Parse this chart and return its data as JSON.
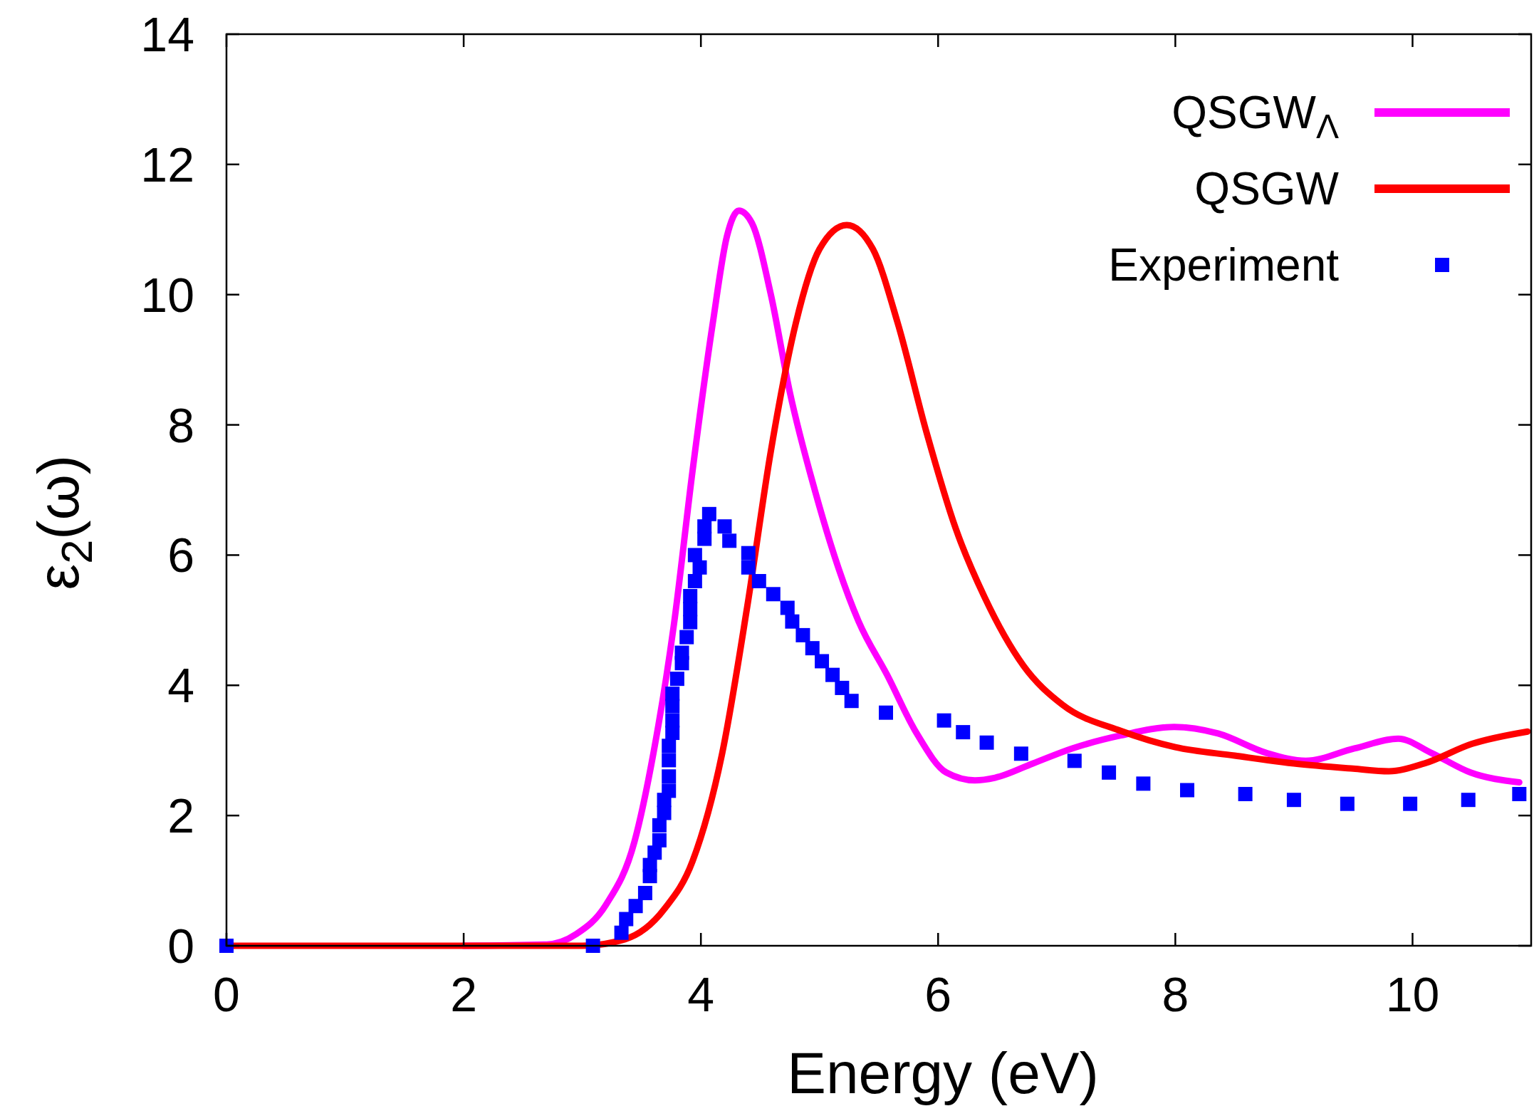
{
  "chart_data": {
    "type": "line",
    "xlabel": "Energy (eV)",
    "ylabel": "ε$_{2}$(ω)",
    "xlim": [
      0,
      11
    ],
    "ylim": [
      0,
      14
    ],
    "xticks": [
      0,
      2,
      4,
      6,
      8,
      10
    ],
    "yticks": [
      0,
      2,
      4,
      6,
      8,
      10,
      12,
      14
    ],
    "legend": "top right",
    "grid": false,
    "series": [
      {
        "name": "QSGW$_{Λ}$",
        "color": "#ff00ff",
        "line_style": "solid",
        "x": [
          2,
          2.7,
          2.95,
          3.2,
          3.44,
          3.6,
          3.77,
          3.93,
          4.1,
          4.22,
          4.32,
          4.43,
          4.59,
          4.75,
          4.96,
          5.16,
          5.33,
          5.57,
          5.82,
          6.07,
          6.31,
          6.48,
          6.8,
          7.13,
          7.54,
          7.99,
          8.36,
          8.77,
          9.1,
          9.51,
          9.88,
          10.16,
          10.49,
          10.9
        ],
        "values": [
          0,
          0.02,
          0.18,
          0.63,
          1.6,
          2.96,
          4.9,
          7.3,
          9.56,
          10.9,
          11.29,
          11.1,
          10,
          8.5,
          7,
          5.8,
          4.98,
          4.16,
          3.26,
          2.66,
          2.54,
          2.58,
          2.8,
          3.03,
          3.23,
          3.36,
          3.26,
          2.96,
          2.84,
          3.03,
          3.18,
          2.96,
          2.66,
          2.51
        ]
      },
      {
        "name": "QSGW",
        "color": "#ff0000",
        "line_style": "solid",
        "x": [
          0,
          1,
          2,
          3,
          3.36,
          3.69,
          3.93,
          4.18,
          4.39,
          4.59,
          4.8,
          5,
          5.23,
          5.45,
          5.66,
          5.9,
          6.15,
          6.39,
          6.72,
          7.05,
          7.54,
          8,
          8.5,
          9,
          9.5,
          9.8,
          10.1,
          10.5,
          10.97
        ],
        "values": [
          0,
          0,
          0,
          0,
          0.1,
          0.56,
          1.3,
          2.96,
          5.2,
          7.6,
          9.56,
          10.7,
          11.07,
          10.7,
          9.56,
          7.9,
          6.4,
          5.36,
          4.3,
          3.7,
          3.3,
          3.05,
          2.92,
          2.8,
          2.72,
          2.68,
          2.8,
          3.1,
          3.29
        ]
      },
      {
        "name": "Experiment",
        "type": "scatter",
        "color": "#0000ff",
        "marker": "square",
        "x": [
          0,
          3.09,
          3.33,
          3.37,
          3.45,
          3.53,
          3.57,
          3.57,
          3.61,
          3.65,
          3.65,
          3.69,
          3.69,
          3.73,
          3.73,
          3.73,
          3.73,
          3.76,
          3.76,
          3.76,
          3.76,
          3.8,
          3.84,
          3.84,
          3.88,
          3.91,
          3.91,
          3.91,
          3.95,
          3.99,
          3.95,
          4.03,
          4.03,
          4.07,
          4.2,
          4.24,
          4.4,
          4.4,
          4.49,
          4.61,
          4.73,
          4.77,
          4.86,
          4.94,
          5.02,
          5.11,
          5.19,
          5.27,
          5.56,
          6.05,
          6.21,
          6.41,
          6.7,
          7.15,
          7.44,
          7.73,
          8.1,
          8.59,
          9,
          9.45,
          9.98,
          10.47,
          10.9
        ],
        "values": [
          0,
          0,
          0.2,
          0.41,
          0.61,
          0.81,
          1.07,
          1.24,
          1.43,
          1.62,
          1.85,
          2.04,
          2.24,
          2.38,
          2.6,
          2.85,
          3.07,
          3.27,
          3.46,
          3.68,
          3.87,
          4.1,
          4.34,
          4.5,
          4.74,
          4.97,
          5.17,
          5.37,
          5.6,
          5.81,
          6,
          6.25,
          6.44,
          6.63,
          6.44,
          6.22,
          6.03,
          5.81,
          5.6,
          5.4,
          5.19,
          4.98,
          4.77,
          4.57,
          4.37,
          4.16,
          3.96,
          3.76,
          3.58,
          3.46,
          3.28,
          3.12,
          2.95,
          2.84,
          2.66,
          2.49,
          2.39,
          2.33,
          2.24,
          2.18,
          2.18,
          2.24,
          2.33
        ]
      }
    ]
  }
}
